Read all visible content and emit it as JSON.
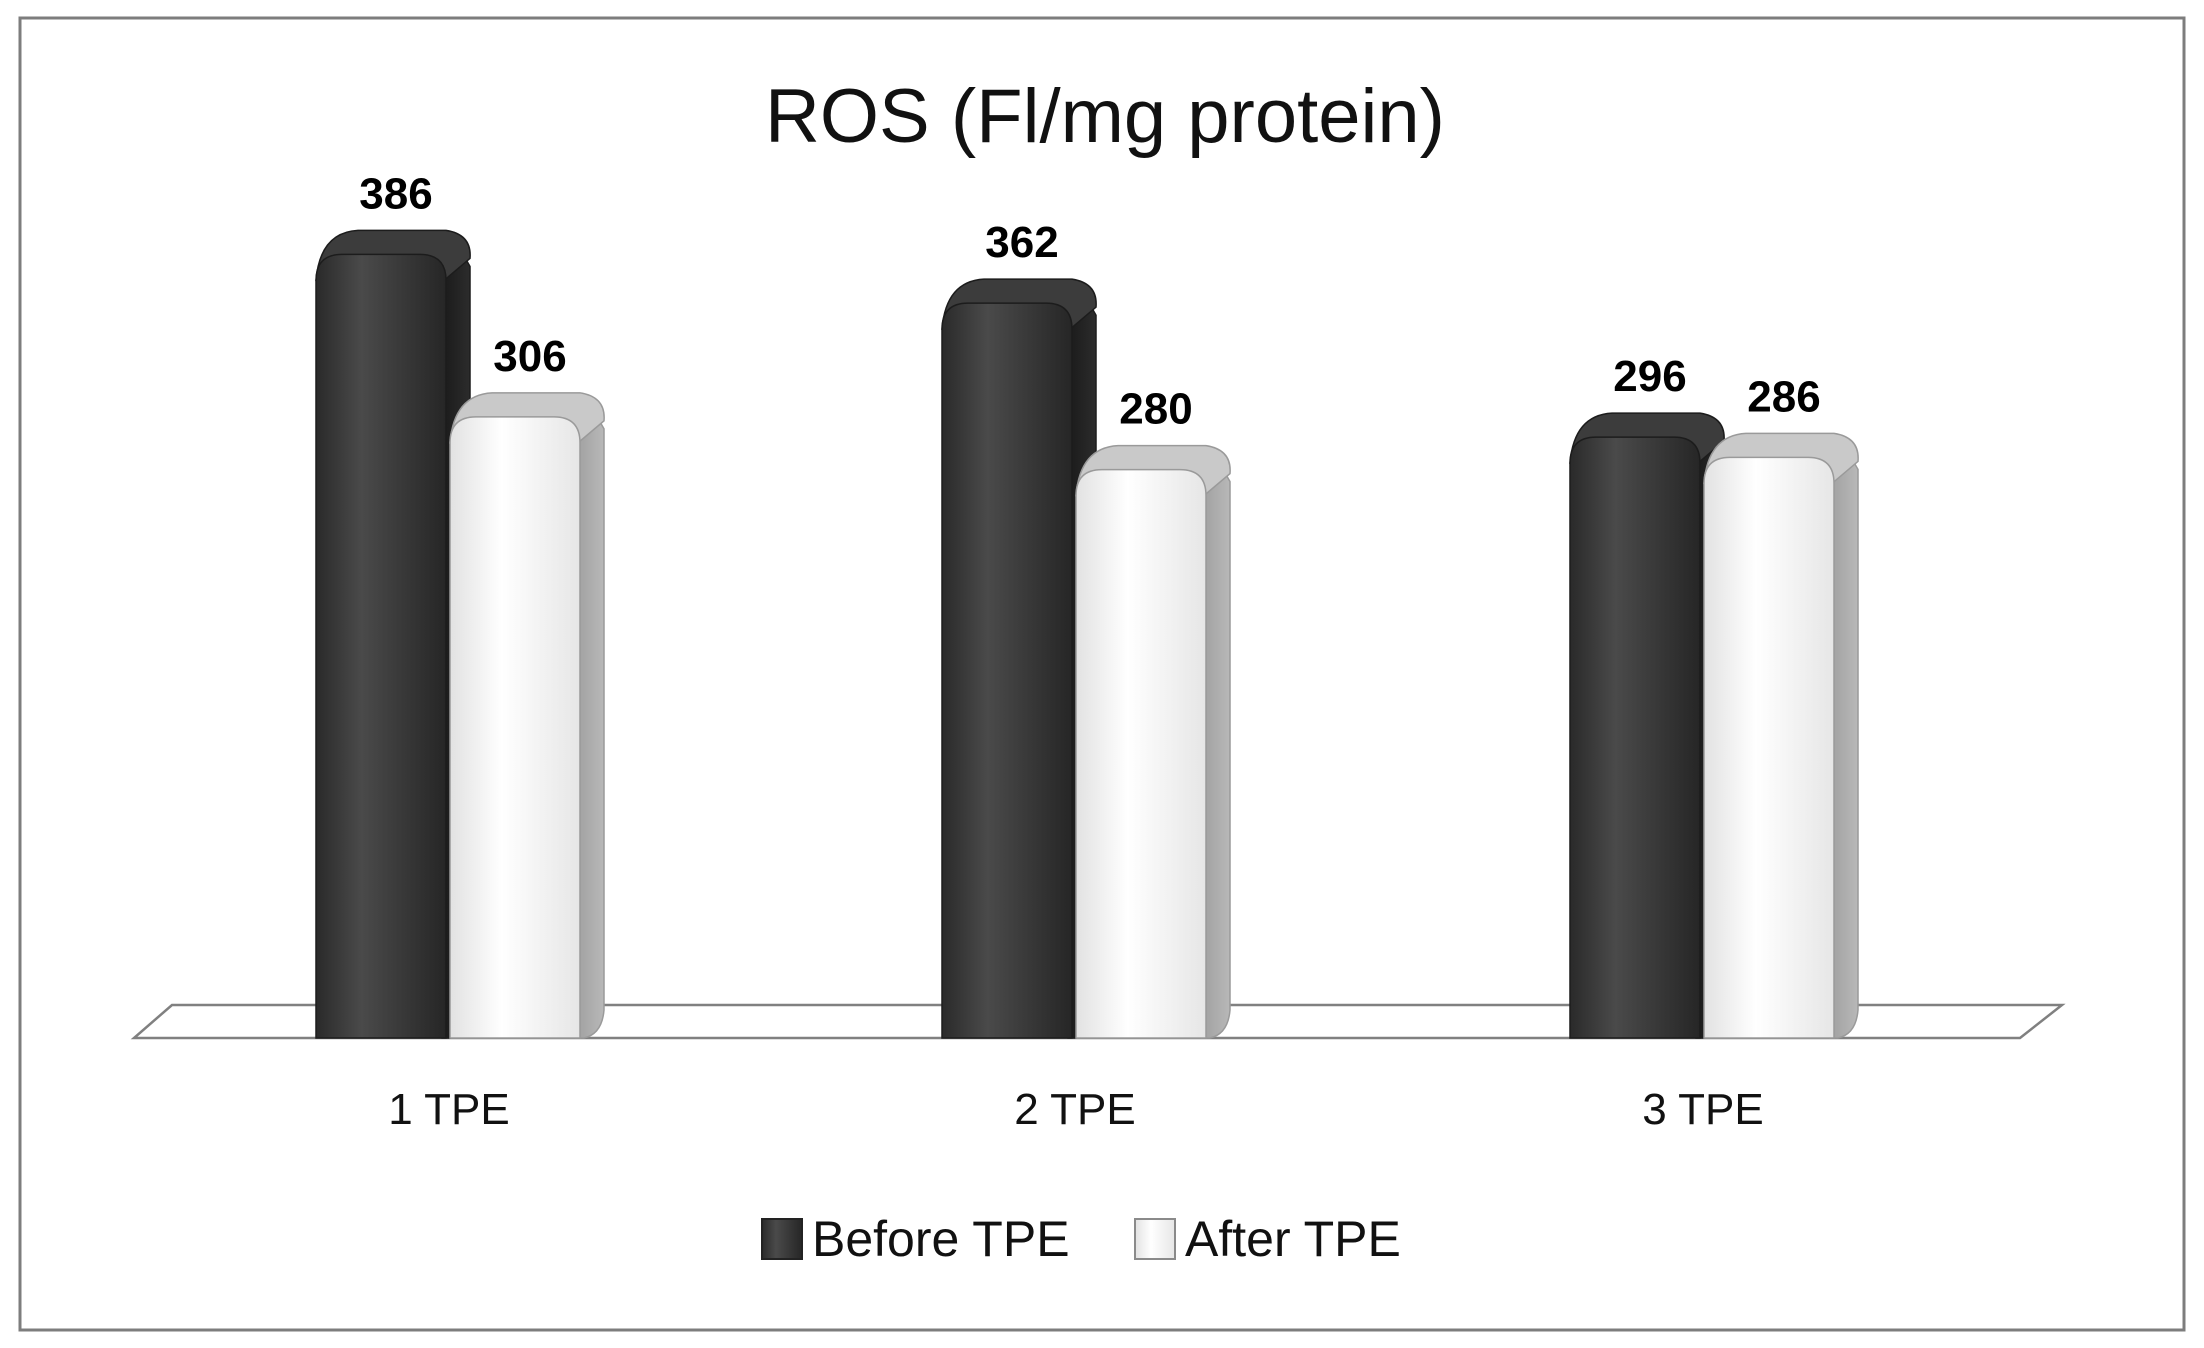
{
  "chart_data": {
    "type": "bar",
    "title": "ROS (Fl/mg protein)",
    "categories": [
      "1 TPE",
      "2 TPE",
      "3 TPE"
    ],
    "series": [
      {
        "name": "Before TPE",
        "values": [
          386,
          362,
          296
        ],
        "color": "#3a3a3a"
      },
      {
        "name": "After TPE",
        "values": [
          306,
          280,
          286
        ],
        "color": "#f7f7f7"
      }
    ],
    "xlabel": "",
    "ylabel": "",
    "ylim": [
      0,
      400
    ],
    "grid": false,
    "legend": "bottom-center",
    "style": "3d-cylinder"
  }
}
